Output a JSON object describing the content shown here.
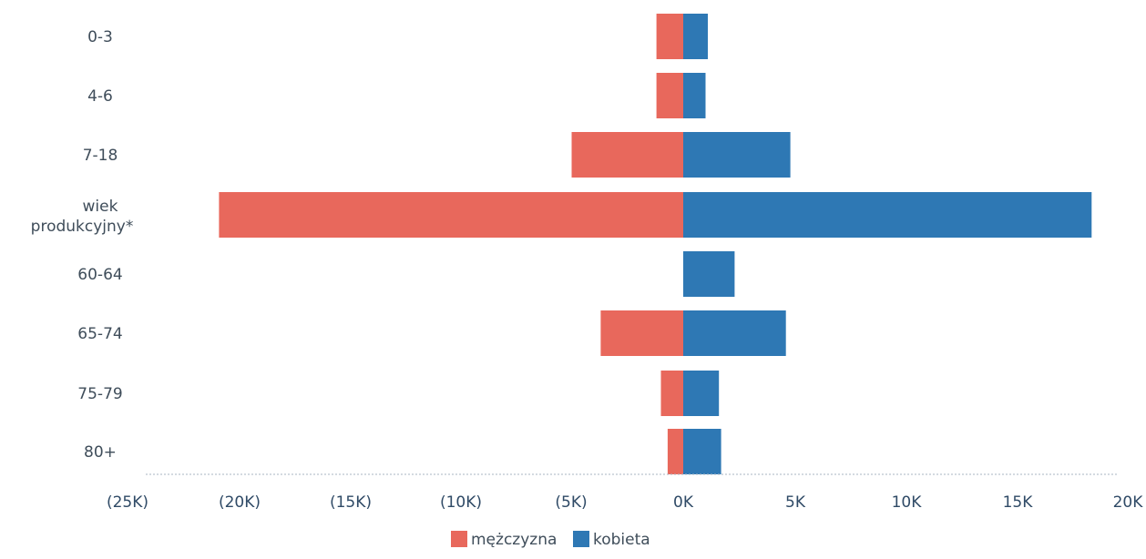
{
  "chart_data": {
    "type": "bar",
    "orientation": "horizontal",
    "layout": "diverging",
    "categories": [
      "0-3",
      "4-6",
      "7-18",
      "wiek produkcyjny*",
      "60-64",
      "65-74",
      "75-79",
      "80+"
    ],
    "series": [
      {
        "name": "mężczyzna",
        "color": "#e8685c",
        "values": [
          -1200,
          -1200,
          -5000,
          -20800,
          0,
          -3700,
          -1000,
          -700
        ]
      },
      {
        "name": "kobieta",
        "color": "#2e78b4",
        "values": [
          1100,
          1000,
          4800,
          18300,
          2300,
          4600,
          1600,
          1700
        ]
      }
    ],
    "xticks": [
      "(25K)",
      "(20K)",
      "(15K)",
      "(10K)",
      "(5K)",
      "0K",
      "5K",
      "10K",
      "15K",
      "20K"
    ],
    "xlim": [
      -25000,
      20000
    ],
    "grid": false,
    "legend_position": "bottom-center"
  }
}
